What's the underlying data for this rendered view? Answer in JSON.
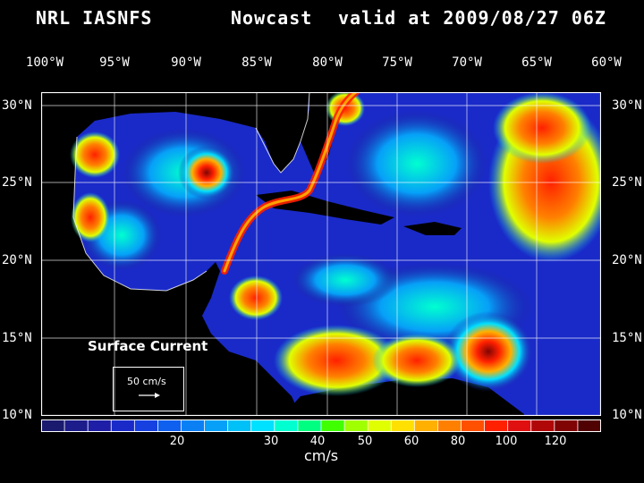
{
  "title": {
    "org": "NRL IASNFS",
    "kind": "Nowcast",
    "valid": "valid at 2009/08/27 06Z"
  },
  "lon_labels": [
    "100°W",
    "95°W",
    "90°W",
    "85°W",
    "80°W",
    "75°W",
    "70°W",
    "65°W",
    "60°W"
  ],
  "lat_labels": [
    "30°N",
    "25°N",
    "20°N",
    "15°N",
    "10°N"
  ],
  "map": {
    "label": "Surface Current",
    "reference_vector": "50 cm/s",
    "lon_range": [
      -100,
      -60
    ],
    "lat_range": [
      10,
      31
    ]
  },
  "colorbar": {
    "ticks": [
      "20",
      "30",
      "40",
      "50",
      "60",
      "80",
      "100",
      "120"
    ],
    "unit": "cm/s",
    "colors": [
      "#1a1a6e",
      "#1c1c8a",
      "#1e1ea6",
      "#1a2ac8",
      "#1640e0",
      "#1060f0",
      "#0b80f5",
      "#06a0f8",
      "#00c0f8",
      "#00e0ff",
      "#00ffd0",
      "#00ff80",
      "#40ff00",
      "#a0ff00",
      "#e0ff00",
      "#ffe000",
      "#ffb000",
      "#ff8000",
      "#ff5000",
      "#ff2000",
      "#e01010",
      "#b00808",
      "#800404",
      "#500202"
    ]
  },
  "colors": {
    "background": "#000000",
    "land": "#000000",
    "text": "#ffffff"
  }
}
